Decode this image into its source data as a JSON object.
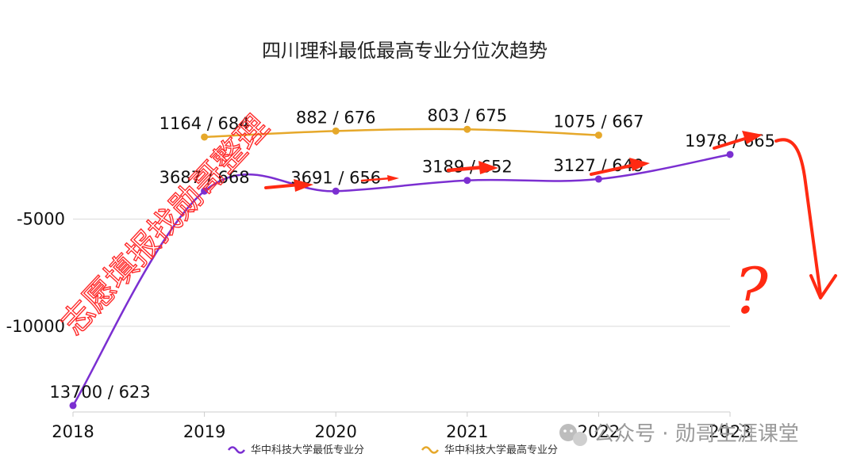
{
  "chart_data": {
    "type": "line",
    "title": "四川理科最低最高专业分位次趋势",
    "x": [
      "2018",
      "2019",
      "2020",
      "2021",
      "2022",
      "2023"
    ],
    "y_ticks": [
      "-5000",
      "-10000"
    ],
    "ylim": [
      -14000,
      3200
    ],
    "grid": true,
    "legend_position": "bottom",
    "series": [
      {
        "name": "华中科技大学最低专业分",
        "color": "#7b2fd1",
        "values": [
          -13700,
          -3687,
          -3691,
          -3189,
          -3127,
          -1978
        ],
        "labels": [
          "13700 / 623",
          "3687 / 668",
          "3691 / 656",
          "3189 / 652",
          "3127 / 649",
          "1978 / 665"
        ]
      },
      {
        "name": "华中科技大学最高专业分",
        "color": "#e6a82a",
        "values": [
          null,
          -1164,
          -882,
          -803,
          -1075,
          null
        ],
        "labels": [
          "",
          "1164 / 684",
          "882 / 676",
          "803 / 675",
          "1075 / 667",
          ""
        ]
      }
    ]
  },
  "overlay": {
    "watermark_text": "公众号 · 勋哥生涯课堂",
    "stamp_text": "志愿填报找勋哥整理",
    "question_mark": "?",
    "annotation_color": "#ff2a12"
  }
}
